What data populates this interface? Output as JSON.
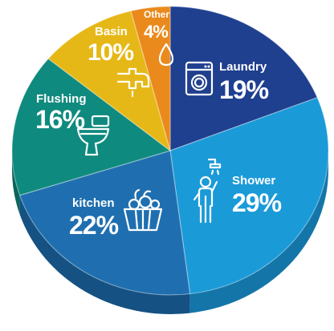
{
  "chart_data": {
    "type": "pie",
    "title": "",
    "start_angle_deg": 0,
    "slices": [
      {
        "name": "Laundry",
        "value": 19,
        "label": "19%",
        "color": "#1f3f8f",
        "side": "#142c68",
        "icon": "washing-machine-icon"
      },
      {
        "name": "Shower",
        "value": 29,
        "label": "29%",
        "color": "#1b9ad8",
        "side": "#1475a8",
        "icon": "shower-person-icon"
      },
      {
        "name": "kitchen",
        "value": 22,
        "label": "22%",
        "color": "#1f6fb0",
        "side": "#155182",
        "icon": "vegetable-basket-icon"
      },
      {
        "name": "Flushing",
        "value": 16,
        "label": "16%",
        "color": "#0f8a7e",
        "side": "#0a655c",
        "icon": "toilet-icon"
      },
      {
        "name": "Basin",
        "value": 10,
        "label": "10%",
        "color": "#e6b817",
        "side": "#b08c10",
        "icon": "faucet-icon"
      },
      {
        "name": "Other",
        "value": 4,
        "label": "4%",
        "color": "#ea8a1c",
        "side": "#b56811",
        "icon": "water-drop-icon"
      }
    ]
  }
}
